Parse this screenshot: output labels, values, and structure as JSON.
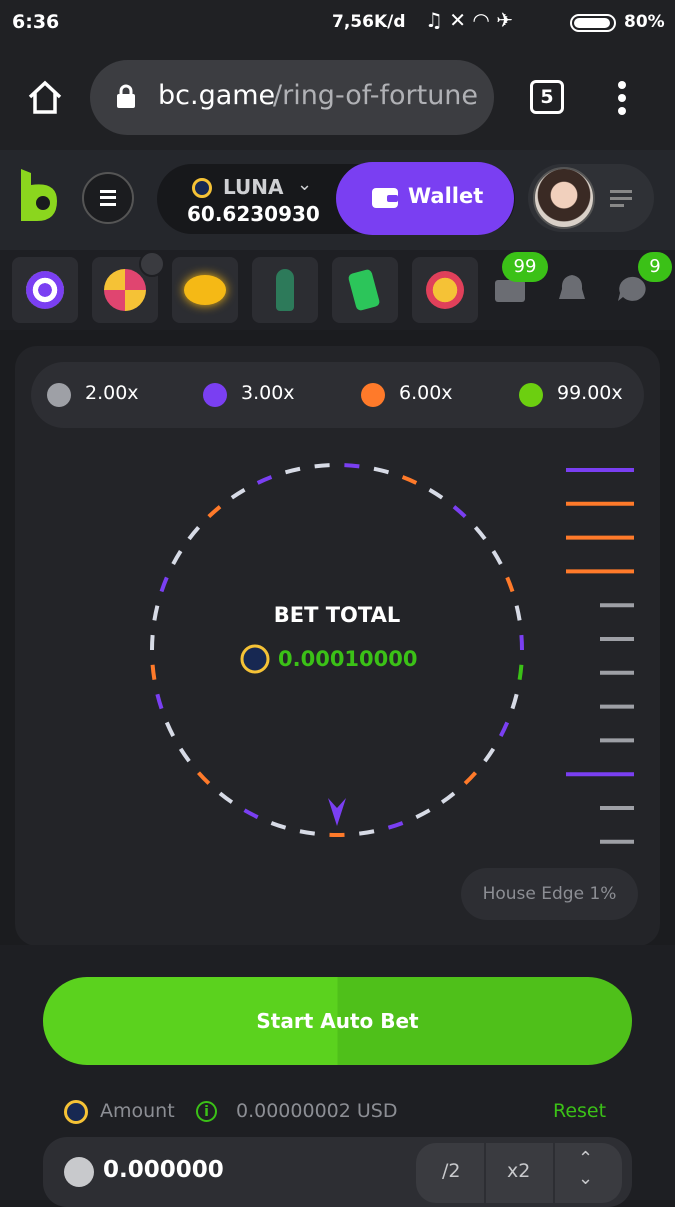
{
  "status_bar": {
    "time": "6:36",
    "speed": "7,56K/d",
    "battery": "80%"
  },
  "browser": {
    "domain": "bc.game",
    "path": "/ring-of-fortune",
    "tabs": "5"
  },
  "header": {
    "currency": "LUNA",
    "balance": "60.6230930",
    "wallet": "Wallet"
  },
  "badges": {
    "mail": "99",
    "chat": "9"
  },
  "multipliers": [
    "2.00x",
    "3.00x",
    "6.00x",
    "99.00x"
  ],
  "game": {
    "bet_total_label": "BET TOTAL",
    "bet_total_value": "0.00010000",
    "house_edge": "House Edge 1%"
  },
  "controls": {
    "start_button": "Start Auto Bet",
    "amount_label": "Amount",
    "amount_usd": "0.00000002 USD",
    "reset": "Reset",
    "amount_value": "0.000000",
    "half": "/2",
    "double": "x2"
  }
}
